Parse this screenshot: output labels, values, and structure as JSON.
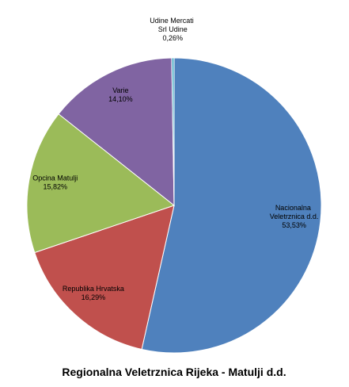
{
  "chart_data": {
    "type": "pie",
    "title": "Regionalna Veletrznica Rijeka - Matulji d.d.",
    "categories": [
      "Nacionalna Veletrznica d.d.",
      "Republika Hrvatska",
      "Opcina Matulji",
      "Varie",
      "Udine Mercati Srl Udine"
    ],
    "values": [
      53.53,
      16.29,
      15.82,
      14.1,
      0.26
    ],
    "value_labels": [
      "53,53%",
      "16,29%",
      "15,82%",
      "14,10%",
      "0,26%"
    ],
    "colors": [
      "#4f81bd",
      "#c0504d",
      "#9bbb59",
      "#8064a2",
      "#4bacc6"
    ]
  }
}
